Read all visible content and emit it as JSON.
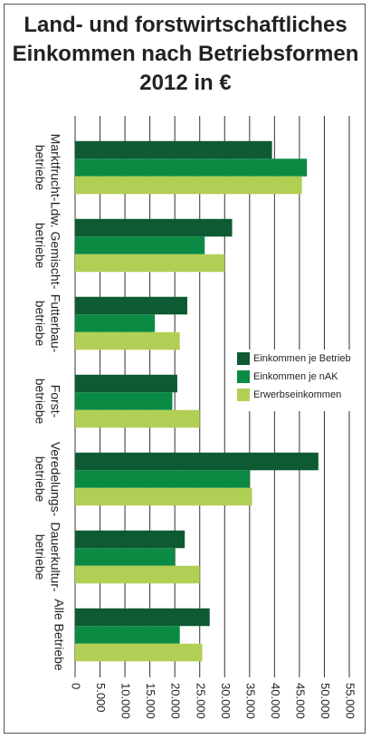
{
  "chart_data": {
    "type": "bar",
    "orientation": "horizontal",
    "title": [
      "Land- und forstwirtschaftliches",
      "Einkommen nach Betriebsformen",
      "2012 in €"
    ],
    "xlabel": "",
    "ylabel": "",
    "categories": [
      [
        "Marktfrucht-",
        "betriebe"
      ],
      [
        "Ldw. Gemischt-",
        "betriebe"
      ],
      [
        "Futterbau-",
        "betriebe"
      ],
      [
        "Forst-",
        "betriebe"
      ],
      [
        "Veredelungs-",
        "betriebe"
      ],
      [
        "Dauerkultur-",
        "betriebe"
      ],
      [
        "Alle Betriebe"
      ]
    ],
    "series": [
      {
        "name": "Einkommen je Betrieb",
        "color": "#0d5a33",
        "values": [
          39500,
          31500,
          22500,
          20500,
          48800,
          22000,
          27000
        ]
      },
      {
        "name": "Einkommen je nAK",
        "color": "#0b8a43",
        "values": [
          46500,
          26000,
          16000,
          19500,
          35000,
          20000,
          21000
        ]
      },
      {
        "name": "Erwerbseinkommen",
        "color": "#b2cf55",
        "values": [
          45500,
          30000,
          21000,
          25000,
          35500,
          25000,
          25500
        ]
      }
    ],
    "ticks": [
      "0",
      "5.000",
      "10.000",
      "15.000",
      "20.000",
      "25.000",
      "30.000",
      "35.000",
      "40.000",
      "45.000",
      "50.000",
      "55.000"
    ],
    "xlim": [
      0,
      55000
    ],
    "grid": "vertical",
    "legend_position": "right"
  }
}
